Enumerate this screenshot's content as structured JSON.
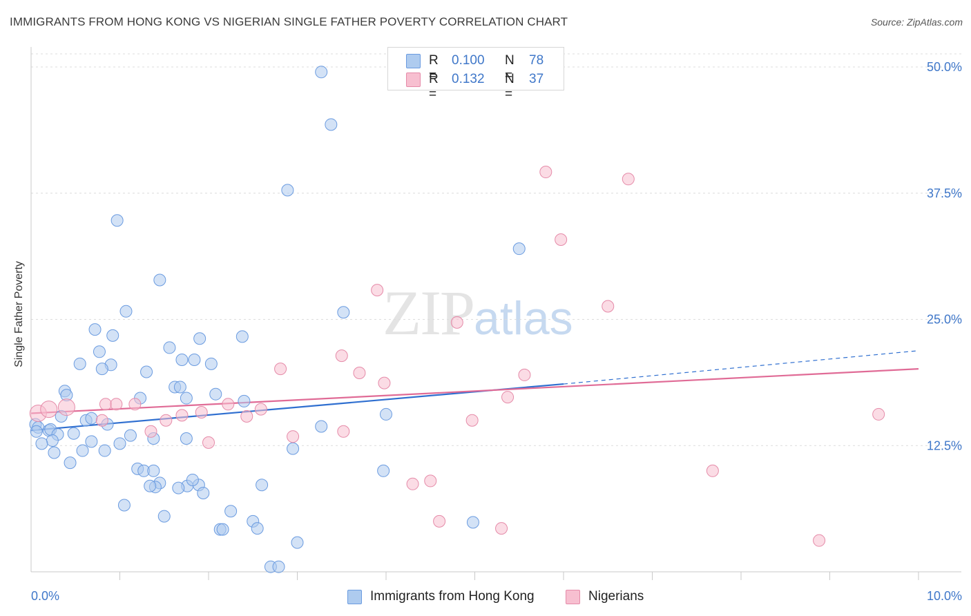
{
  "header": {
    "title": "IMMIGRANTS FROM HONG KONG VS NIGERIAN SINGLE FATHER POVERTY CORRELATION CHART",
    "source": "Source: ZipAtlas.com"
  },
  "watermark": {
    "zip": "ZIP",
    "atlas": "atlas"
  },
  "legend": {
    "rows": [
      {
        "r_label": "R =",
        "r_value": "0.100",
        "n_label": "N =",
        "n_value": "78",
        "color": "#aecbef"
      },
      {
        "r_label": "R =",
        "r_value": "0.132",
        "n_label": "N =",
        "n_value": "37",
        "color": "#f7bfd0"
      }
    ]
  },
  "bottom_legend": [
    {
      "label": "Immigrants from Hong Kong",
      "color": "#aecbef"
    },
    {
      "label": "Nigerians",
      "color": "#f7bfd0"
    }
  ],
  "chart_data": {
    "type": "scatter",
    "title": "IMMIGRANTS FROM HONG KONG VS NIGERIAN SINGLE FATHER POVERTY CORRELATION CHART",
    "xlabel": "",
    "ylabel": "Single Father Poverty",
    "xlim": [
      0,
      10
    ],
    "ylim": [
      0,
      50
    ],
    "x_tick_labels": [
      "0.0%",
      "10.0%"
    ],
    "y_ticks": [
      12.5,
      25.0,
      37.5,
      50.0
    ],
    "y_tick_labels": [
      "12.5%",
      "25.0%",
      "37.5%",
      "50.0%"
    ],
    "grid": "horizontal dashed",
    "legend_position": "top-center",
    "series": [
      {
        "name": "Immigrants from Hong Kong",
        "color": "#aecbef",
        "stroke": "#6a9be0",
        "trend": {
          "x0": 0,
          "y0": 14.0,
          "x1": 6.0,
          "y1": 18.6,
          "dashed_to_x": 10,
          "dashed_to_y": 21.9,
          "color": "#2f6fd0"
        },
        "points": [
          [
            3.27,
            49.5
          ],
          [
            3.38,
            44.3
          ],
          [
            2.89,
            37.8
          ],
          [
            0.97,
            34.8
          ],
          [
            1.45,
            28.9
          ],
          [
            5.5,
            32.0
          ],
          [
            1.07,
            25.8
          ],
          [
            3.52,
            25.7
          ],
          [
            0.72,
            24.0
          ],
          [
            0.92,
            23.4
          ],
          [
            1.56,
            22.2
          ],
          [
            1.9,
            23.1
          ],
          [
            2.38,
            23.3
          ],
          [
            0.77,
            21.8
          ],
          [
            0.55,
            20.6
          ],
          [
            0.9,
            20.5
          ],
          [
            0.8,
            20.1
          ],
          [
            1.7,
            21.0
          ],
          [
            1.84,
            21.0
          ],
          [
            2.03,
            20.6
          ],
          [
            1.3,
            19.8
          ],
          [
            1.62,
            18.3
          ],
          [
            1.68,
            18.3
          ],
          [
            0.38,
            17.9
          ],
          [
            0.4,
            17.5
          ],
          [
            1.23,
            17.2
          ],
          [
            2.08,
            17.6
          ],
          [
            2.4,
            16.9
          ],
          [
            0.34,
            15.4
          ],
          [
            0.62,
            15.0
          ],
          [
            0.68,
            15.2
          ],
          [
            0.86,
            14.6
          ],
          [
            4.0,
            15.6
          ],
          [
            3.27,
            14.4
          ],
          [
            0.05,
            14.6
          ],
          [
            0.08,
            14.3
          ],
          [
            0.06,
            13.9
          ],
          [
            0.2,
            14.0
          ],
          [
            0.22,
            14.1
          ],
          [
            0.3,
            13.6
          ],
          [
            0.48,
            13.7
          ],
          [
            1.12,
            13.5
          ],
          [
            1.38,
            13.2
          ],
          [
            0.24,
            13.0
          ],
          [
            0.12,
            12.7
          ],
          [
            0.68,
            12.9
          ],
          [
            1.0,
            12.7
          ],
          [
            0.58,
            12.0
          ],
          [
            0.83,
            12.0
          ],
          [
            1.75,
            13.2
          ],
          [
            2.95,
            12.2
          ],
          [
            0.26,
            11.8
          ],
          [
            0.44,
            10.8
          ],
          [
            1.2,
            10.2
          ],
          [
            1.27,
            10.0
          ],
          [
            1.38,
            10.0
          ],
          [
            3.97,
            10.0
          ],
          [
            1.45,
            8.8
          ],
          [
            1.4,
            8.4
          ],
          [
            1.34,
            8.5
          ],
          [
            1.76,
            8.5
          ],
          [
            1.89,
            8.6
          ],
          [
            1.82,
            9.1
          ],
          [
            1.66,
            8.3
          ],
          [
            1.94,
            7.8
          ],
          [
            2.6,
            8.6
          ],
          [
            1.05,
            6.6
          ],
          [
            1.5,
            5.5
          ],
          [
            2.25,
            6.0
          ],
          [
            2.5,
            5.0
          ],
          [
            2.55,
            4.3
          ],
          [
            2.13,
            4.2
          ],
          [
            2.16,
            4.2
          ],
          [
            3.0,
            2.9
          ],
          [
            4.98,
            4.9
          ],
          [
            2.7,
            0.5
          ],
          [
            2.79,
            0.5
          ],
          [
            1.75,
            17.2
          ]
        ]
      },
      {
        "name": "Nigerians",
        "color": "#f7bfd0",
        "stroke": "#e58aa8",
        "trend": {
          "x0": 0,
          "y0": 15.7,
          "x1": 10,
          "y1": 20.1,
          "color": "#e06b96"
        },
        "points": [
          [
            0.08,
            15.7
          ],
          [
            0.4,
            16.3
          ],
          [
            0.2,
            16.1
          ],
          [
            0.8,
            15.0
          ],
          [
            0.84,
            16.6
          ],
          [
            0.96,
            16.6
          ],
          [
            1.17,
            16.6
          ],
          [
            1.35,
            13.9
          ],
          [
            1.52,
            15.0
          ],
          [
            1.7,
            15.5
          ],
          [
            1.92,
            15.8
          ],
          [
            2.0,
            12.8
          ],
          [
            2.22,
            16.6
          ],
          [
            2.43,
            15.4
          ],
          [
            2.59,
            16.1
          ],
          [
            2.81,
            20.1
          ],
          [
            2.95,
            13.4
          ],
          [
            3.52,
            13.9
          ],
          [
            3.5,
            21.4
          ],
          [
            3.7,
            19.7
          ],
          [
            3.9,
            27.9
          ],
          [
            3.98,
            18.7
          ],
          [
            4.3,
            8.7
          ],
          [
            4.5,
            9.0
          ],
          [
            4.6,
            5.0
          ],
          [
            4.8,
            24.7
          ],
          [
            4.97,
            15.0
          ],
          [
            5.3,
            4.3
          ],
          [
            5.37,
            17.3
          ],
          [
            5.56,
            19.5
          ],
          [
            5.8,
            39.6
          ],
          [
            5.97,
            32.9
          ],
          [
            6.5,
            26.3
          ],
          [
            6.73,
            38.9
          ],
          [
            7.68,
            10.0
          ],
          [
            8.88,
            3.1
          ],
          [
            9.55,
            15.6
          ]
        ]
      }
    ]
  }
}
